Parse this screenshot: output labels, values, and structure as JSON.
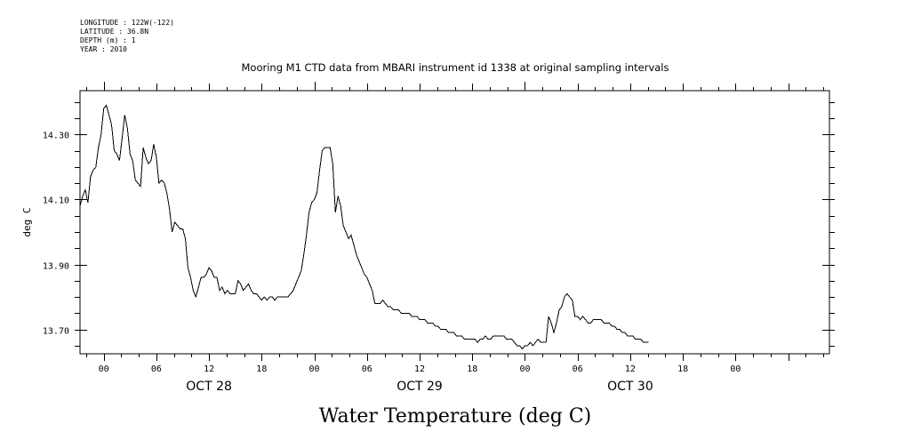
{
  "meta": {
    "longitude": "LONGITUDE : 122W(-122)",
    "latitude": "LATITUDE : 36.8N",
    "depth": "DEPTH (m) : 1",
    "year": "YEAR : 2010"
  },
  "chart_data": {
    "type": "line",
    "title": "Mooring M1 CTD data from MBARI instrument id 1338 at original sampling intervals",
    "xlabel": "Water Temperature (deg C)",
    "ylabel": "deg C",
    "xlim": [
      -2.7,
      82.7
    ],
    "ylim": [
      13.625,
      14.435
    ],
    "yticks": [
      "14.30",
      "14.10",
      "13.90",
      "13.70"
    ],
    "ytick_values": [
      14.3,
      14.1,
      13.9,
      13.7
    ],
    "xticks": [
      {
        "h": 0,
        "label": "00"
      },
      {
        "h": 6,
        "label": "06"
      },
      {
        "h": 12,
        "label": "12"
      },
      {
        "h": 18,
        "label": "18"
      },
      {
        "h": 24,
        "label": "00"
      },
      {
        "h": 30,
        "label": "06"
      },
      {
        "h": 36,
        "label": "12"
      },
      {
        "h": 42,
        "label": "18"
      },
      {
        "h": 48,
        "label": "00"
      },
      {
        "h": 54,
        "label": "06"
      },
      {
        "h": 60,
        "label": "12"
      },
      {
        "h": 66,
        "label": "18"
      },
      {
        "h": 72,
        "label": "00"
      }
    ],
    "date_labels": [
      {
        "h": 12,
        "label": "OCT 28"
      },
      {
        "h": 36,
        "label": "OCT 29"
      },
      {
        "h": 60,
        "label": "OCT 30"
      }
    ],
    "series": [
      {
        "points": [
          [
            -3.0,
            14.0
          ],
          [
            -2.7,
            14.08
          ],
          [
            -2.4,
            14.11
          ],
          [
            -2.1,
            14.13
          ],
          [
            -1.8,
            14.09
          ],
          [
            -1.5,
            14.17
          ],
          [
            -1.2,
            14.19
          ],
          [
            -0.9,
            14.2
          ],
          [
            -0.6,
            14.26
          ],
          [
            -0.3,
            14.3
          ],
          [
            0.0,
            14.38
          ],
          [
            0.3,
            14.39
          ],
          [
            0.6,
            14.36
          ],
          [
            0.9,
            14.33
          ],
          [
            1.2,
            14.25
          ],
          [
            1.5,
            14.24
          ],
          [
            1.8,
            14.22
          ],
          [
            2.1,
            14.29
          ],
          [
            2.4,
            14.36
          ],
          [
            2.7,
            14.32
          ],
          [
            3.0,
            14.24
          ],
          [
            3.3,
            14.22
          ],
          [
            3.6,
            14.16
          ],
          [
            3.9,
            14.15
          ],
          [
            4.2,
            14.14
          ],
          [
            4.5,
            14.26
          ],
          [
            4.8,
            14.23
          ],
          [
            5.1,
            14.21
          ],
          [
            5.4,
            14.22
          ],
          [
            5.7,
            14.27
          ],
          [
            6.0,
            14.23
          ],
          [
            6.3,
            14.15
          ],
          [
            6.6,
            14.16
          ],
          [
            6.9,
            14.15
          ],
          [
            7.2,
            14.12
          ],
          [
            7.5,
            14.07
          ],
          [
            7.8,
            14.0
          ],
          [
            8.1,
            14.03
          ],
          [
            8.4,
            14.02
          ],
          [
            8.7,
            14.01
          ],
          [
            9.0,
            14.01
          ],
          [
            9.3,
            13.98
          ],
          [
            9.6,
            13.89
          ],
          [
            9.9,
            13.86
          ],
          [
            10.2,
            13.82
          ],
          [
            10.5,
            13.8
          ],
          [
            10.8,
            13.83
          ],
          [
            11.1,
            13.86
          ],
          [
            11.4,
            13.86
          ],
          [
            11.7,
            13.87
          ],
          [
            12.0,
            13.89
          ],
          [
            12.3,
            13.88
          ],
          [
            12.6,
            13.86
          ],
          [
            12.9,
            13.86
          ],
          [
            13.2,
            13.82
          ],
          [
            13.5,
            13.83
          ],
          [
            13.8,
            13.81
          ],
          [
            14.1,
            13.82
          ],
          [
            14.4,
            13.81
          ],
          [
            14.7,
            13.81
          ],
          [
            15.0,
            13.81
          ],
          [
            15.3,
            13.85
          ],
          [
            15.6,
            13.84
          ],
          [
            15.9,
            13.82
          ],
          [
            16.2,
            13.83
          ],
          [
            16.5,
            13.84
          ],
          [
            16.8,
            13.82
          ],
          [
            17.1,
            13.81
          ],
          [
            17.4,
            13.81
          ],
          [
            17.7,
            13.8
          ],
          [
            18.0,
            13.79
          ],
          [
            18.3,
            13.8
          ],
          [
            18.6,
            13.79
          ],
          [
            18.9,
            13.8
          ],
          [
            19.2,
            13.8
          ],
          [
            19.5,
            13.79
          ],
          [
            19.8,
            13.8
          ],
          [
            20.1,
            13.8
          ],
          [
            20.4,
            13.8
          ],
          [
            20.7,
            13.8
          ],
          [
            21.0,
            13.8
          ],
          [
            21.3,
            13.81
          ],
          [
            21.6,
            13.82
          ],
          [
            21.9,
            13.84
          ],
          [
            22.2,
            13.86
          ],
          [
            22.5,
            13.88
          ],
          [
            22.8,
            13.93
          ],
          [
            23.1,
            13.99
          ],
          [
            23.4,
            14.06
          ],
          [
            23.7,
            14.09
          ],
          [
            24.0,
            14.1
          ],
          [
            24.3,
            14.12
          ],
          [
            24.6,
            14.19
          ],
          [
            24.9,
            14.25
          ],
          [
            25.2,
            14.26
          ],
          [
            25.5,
            14.26
          ],
          [
            25.8,
            14.26
          ],
          [
            26.1,
            14.21
          ],
          [
            26.4,
            14.06
          ],
          [
            26.7,
            14.11
          ],
          [
            27.0,
            14.08
          ],
          [
            27.3,
            14.02
          ],
          [
            27.6,
            14.0
          ],
          [
            27.9,
            13.98
          ],
          [
            28.2,
            13.99
          ],
          [
            28.5,
            13.96
          ],
          [
            28.8,
            13.93
          ],
          [
            29.1,
            13.91
          ],
          [
            29.4,
            13.89
          ],
          [
            29.7,
            13.87
          ],
          [
            30.0,
            13.86
          ],
          [
            30.3,
            13.84
          ],
          [
            30.6,
            13.82
          ],
          [
            30.9,
            13.78
          ],
          [
            31.2,
            13.78
          ],
          [
            31.5,
            13.78
          ],
          [
            31.8,
            13.79
          ],
          [
            32.1,
            13.78
          ],
          [
            32.4,
            13.77
          ],
          [
            32.7,
            13.77
          ],
          [
            33.0,
            13.76
          ],
          [
            33.3,
            13.76
          ],
          [
            33.6,
            13.76
          ],
          [
            33.9,
            13.75
          ],
          [
            34.2,
            13.75
          ],
          [
            34.5,
            13.75
          ],
          [
            34.8,
            13.75
          ],
          [
            35.1,
            13.74
          ],
          [
            35.4,
            13.74
          ],
          [
            35.7,
            13.74
          ],
          [
            36.0,
            13.73
          ],
          [
            36.3,
            13.73
          ],
          [
            36.6,
            13.73
          ],
          [
            36.9,
            13.72
          ],
          [
            37.2,
            13.72
          ],
          [
            37.5,
            13.72
          ],
          [
            37.8,
            13.71
          ],
          [
            38.1,
            13.71
          ],
          [
            38.4,
            13.7
          ],
          [
            38.7,
            13.7
          ],
          [
            39.0,
            13.7
          ],
          [
            39.3,
            13.69
          ],
          [
            39.6,
            13.69
          ],
          [
            39.9,
            13.69
          ],
          [
            40.2,
            13.68
          ],
          [
            40.5,
            13.68
          ],
          [
            40.8,
            13.68
          ],
          [
            41.1,
            13.67
          ],
          [
            41.4,
            13.67
          ],
          [
            41.7,
            13.67
          ],
          [
            42.0,
            13.67
          ],
          [
            42.3,
            13.67
          ],
          [
            42.6,
            13.66
          ],
          [
            42.9,
            13.67
          ],
          [
            43.2,
            13.67
          ],
          [
            43.5,
            13.68
          ],
          [
            43.8,
            13.67
          ],
          [
            44.1,
            13.67
          ],
          [
            44.4,
            13.68
          ],
          [
            44.7,
            13.68
          ],
          [
            45.0,
            13.68
          ],
          [
            45.3,
            13.68
          ],
          [
            45.6,
            13.68
          ],
          [
            45.9,
            13.67
          ],
          [
            46.2,
            13.67
          ],
          [
            46.5,
            13.67
          ],
          [
            46.8,
            13.66
          ],
          [
            47.1,
            13.65
          ],
          [
            47.4,
            13.65
          ],
          [
            47.7,
            13.64
          ],
          [
            48.0,
            13.65
          ],
          [
            48.3,
            13.65
          ],
          [
            48.6,
            13.66
          ],
          [
            48.9,
            13.65
          ],
          [
            49.2,
            13.66
          ],
          [
            49.5,
            13.67
          ],
          [
            49.8,
            13.66
          ],
          [
            50.1,
            13.66
          ],
          [
            50.4,
            13.66
          ],
          [
            50.7,
            13.74
          ],
          [
            51.0,
            13.72
          ],
          [
            51.3,
            13.69
          ],
          [
            51.6,
            13.72
          ],
          [
            51.9,
            13.76
          ],
          [
            52.2,
            13.77
          ],
          [
            52.5,
            13.8
          ],
          [
            52.8,
            13.81
          ],
          [
            53.1,
            13.8
          ],
          [
            53.4,
            13.79
          ],
          [
            53.7,
            13.74
          ],
          [
            54.0,
            13.74
          ],
          [
            54.3,
            13.73
          ],
          [
            54.6,
            13.74
          ],
          [
            54.9,
            13.73
          ],
          [
            55.2,
            13.72
          ],
          [
            55.5,
            13.72
          ],
          [
            55.8,
            13.73
          ],
          [
            56.1,
            13.73
          ],
          [
            56.4,
            13.73
          ],
          [
            56.7,
            13.73
          ],
          [
            57.0,
            13.72
          ],
          [
            57.3,
            13.72
          ],
          [
            57.6,
            13.72
          ],
          [
            57.9,
            13.71
          ],
          [
            58.2,
            13.71
          ],
          [
            58.5,
            13.7
          ],
          [
            58.8,
            13.7
          ],
          [
            59.1,
            13.69
          ],
          [
            59.4,
            13.69
          ],
          [
            59.7,
            13.68
          ],
          [
            60.0,
            13.68
          ],
          [
            60.3,
            13.68
          ],
          [
            60.6,
            13.67
          ],
          [
            60.9,
            13.67
          ],
          [
            61.2,
            13.67
          ],
          [
            61.5,
            13.66
          ],
          [
            61.8,
            13.66
          ],
          [
            62.1,
            13.66
          ]
        ]
      }
    ],
    "grid": false
  }
}
